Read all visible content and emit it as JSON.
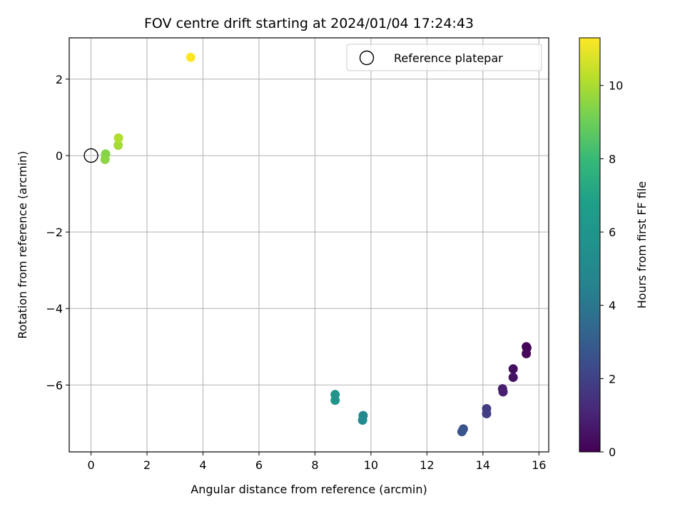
{
  "chart_data": {
    "type": "scatter",
    "title": "FOV centre drift starting at 2024/01/04 17:24:43",
    "xlabel": "Angular distance from reference (arcmin)",
    "ylabel": "Rotation from reference (arcmin)",
    "xlim": [
      -0.78,
      16.35
    ],
    "ylim": [
      -7.75,
      3.08
    ],
    "xticks": [
      0,
      2,
      4,
      6,
      8,
      10,
      12,
      14,
      16
    ],
    "yticks": [
      -6,
      -4,
      -2,
      0,
      2
    ],
    "grid": true,
    "legend": {
      "placement": "top-right",
      "entries": [
        "Reference platepar"
      ]
    },
    "reference_point": {
      "x": 0,
      "y": 0,
      "label": "Reference platepar"
    },
    "colorbar": {
      "label": "Hours from first FF file",
      "colormap": "viridis",
      "range": [
        0,
        11.3
      ],
      "ticks": [
        0,
        2,
        4,
        6,
        8,
        10
      ]
    },
    "points": [
      {
        "x": 15.55,
        "y": -5.0,
        "hours": 0.05
      },
      {
        "x": 15.57,
        "y": -5.03,
        "hours": 0.1
      },
      {
        "x": 15.55,
        "y": -5.18,
        "hours": 0.2
      },
      {
        "x": 15.08,
        "y": -5.58,
        "hours": 0.4
      },
      {
        "x": 15.08,
        "y": -5.8,
        "hours": 0.5
      },
      {
        "x": 14.7,
        "y": -6.1,
        "hours": 0.8
      },
      {
        "x": 14.72,
        "y": -6.18,
        "hours": 0.9
      },
      {
        "x": 14.13,
        "y": -6.62,
        "hours": 1.8
      },
      {
        "x": 14.13,
        "y": -6.75,
        "hours": 1.9
      },
      {
        "x": 13.3,
        "y": -7.15,
        "hours": 2.6
      },
      {
        "x": 13.25,
        "y": -7.22,
        "hours": 2.7
      },
      {
        "x": 9.72,
        "y": -6.8,
        "hours": 5.0
      },
      {
        "x": 9.7,
        "y": -6.92,
        "hours": 5.1
      },
      {
        "x": 8.72,
        "y": -6.25,
        "hours": 6.0
      },
      {
        "x": 8.72,
        "y": -6.4,
        "hours": 6.1
      },
      {
        "x": 0.52,
        "y": 0.04,
        "hours": 9.4
      },
      {
        "x": 0.5,
        "y": -0.1,
        "hours": 9.5
      },
      {
        "x": 0.97,
        "y": 0.27,
        "hours": 9.9
      },
      {
        "x": 0.98,
        "y": 0.46,
        "hours": 10.1
      },
      {
        "x": 3.56,
        "y": 2.57,
        "hours": 11.3
      }
    ]
  }
}
